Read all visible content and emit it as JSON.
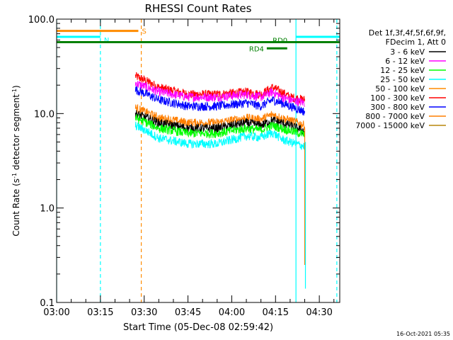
{
  "chart_data": {
    "type": "line",
    "title": "RHESSI Count Rates",
    "xlabel": "Start Time (05-Dec-08 02:59:42)",
    "ylabel_main": "Count Rate (s",
    "ylabel_sup": "-1",
    "ylabel_mid": " detector segment",
    "ylabel_sup2": "-1",
    "ylabel_end": ")",
    "y_scale": "log",
    "ylim": [
      0.1,
      100
    ],
    "xlim": [
      "03:00",
      "04:37"
    ],
    "x_ticks": [
      "03:00",
      "03:15",
      "03:30",
      "03:45",
      "04:00",
      "04:15",
      "04:30"
    ],
    "y_ticks": [
      "0.1",
      "1.0",
      "10.0",
      "100.0"
    ],
    "timestamp": "16-Oct-2021 05:35",
    "legend": {
      "position": "right",
      "header": [
        "Det 1f,3f,4f,5f,6f,9f,",
        "FDecim 1, Att 0"
      ],
      "entries": [
        {
          "label": "3 - 6 keV",
          "color": "#000000"
        },
        {
          "label": "6 - 12 keV",
          "color": "#ff00ff"
        },
        {
          "label": "12 - 25 keV",
          "color": "#00ff00"
        },
        {
          "label": "25 - 50 keV",
          "color": "#00ffff"
        },
        {
          "label": "50 - 100 keV",
          "color": "#ff8c00"
        },
        {
          "label": "100 - 300 keV",
          "color": "#ff0000"
        },
        {
          "label": "300 - 800 keV",
          "color": "#0000ff"
        },
        {
          "label": "800 - 7000 keV",
          "color": "#ff7f00"
        },
        {
          "label": "7000 - 15000 keV",
          "color": "#b8860b"
        }
      ]
    },
    "data_window": {
      "start": "03:27",
      "end": "04:25"
    },
    "series": [
      {
        "name": "100 - 300 keV",
        "color": "#ff0000",
        "x": [
          "03:27",
          "03:35",
          "03:45",
          "03:55",
          "04:05",
          "04:10",
          "04:14",
          "04:17",
          "04:20",
          "04:25"
        ],
        "values": [
          25,
          19,
          16,
          16,
          17,
          16,
          19,
          17,
          15,
          14
        ]
      },
      {
        "name": "6 - 12 keV",
        "color": "#ff00ff",
        "x": [
          "03:27",
          "03:35",
          "03:45",
          "03:55",
          "04:05",
          "04:10",
          "04:14",
          "04:17",
          "04:20",
          "04:25"
        ],
        "values": [
          21,
          17,
          15,
          15,
          16,
          15,
          17,
          15,
          14,
          13
        ]
      },
      {
        "name": "300 - 800 keV",
        "color": "#0000ff",
        "x": [
          "03:27",
          "03:35",
          "03:45",
          "03:55",
          "04:05",
          "04:10",
          "04:14",
          "04:17",
          "04:20",
          "04:25"
        ],
        "values": [
          18,
          14,
          12,
          12,
          13,
          12,
          14,
          13,
          12,
          10.5
        ]
      },
      {
        "name": "800 - 7000 keV",
        "color": "#ff7f00",
        "x": [
          "03:27",
          "03:35",
          "03:45",
          "03:55",
          "04:05",
          "04:10",
          "04:14",
          "04:17",
          "04:20",
          "04:25"
        ],
        "values": [
          11.5,
          9,
          8,
          8,
          9,
          8.7,
          9.8,
          9,
          8.5,
          7.5
        ]
      },
      {
        "name": "3 - 6 keV",
        "color": "#000000",
        "x": [
          "03:27",
          "03:35",
          "03:45",
          "03:55",
          "04:05",
          "04:10",
          "04:14",
          "04:17",
          "04:20",
          "04:25"
        ],
        "values": [
          10,
          8,
          7,
          7,
          8,
          7.5,
          8.5,
          8,
          7.5,
          6.5
        ]
      },
      {
        "name": "12 - 25 keV",
        "color": "#00ff00",
        "x": [
          "03:27",
          "03:35",
          "03:45",
          "03:55",
          "04:05",
          "04:10",
          "04:14",
          "04:17",
          "04:20",
          "04:25"
        ],
        "values": [
          9,
          7,
          6.2,
          6.2,
          7,
          6.7,
          7.5,
          7,
          6.6,
          6
        ]
      },
      {
        "name": "25 - 50 keV",
        "color": "#00ffff",
        "x": [
          "03:27",
          "03:35",
          "03:45",
          "03:55",
          "04:05",
          "04:10",
          "04:14",
          "04:17",
          "04:20",
          "04:25"
        ],
        "values": [
          7.5,
          5.5,
          4.8,
          4.8,
          5.8,
          5.6,
          6.3,
          5.4,
          5,
          4.5
        ]
      }
    ],
    "attenuator_intervals": [
      {
        "label": "S",
        "color": "#ff8c00",
        "start": "03:00",
        "end": "03:28",
        "level": 75
      },
      {
        "label": "N",
        "color": "#00ffff",
        "start": "03:00",
        "end": "03:15",
        "level": 65
      },
      {
        "label": "",
        "color": "#00ffff",
        "start": "04:22",
        "end": "04:37",
        "level": 65
      },
      {
        "label": "RD0",
        "color": "#008000",
        "start": "03:00",
        "end": "04:37",
        "level": 57
      },
      {
        "label": "RD4",
        "color": "#008000",
        "start": "04:12",
        "end": "04:19",
        "level": 49
      }
    ],
    "vertical_markers": [
      {
        "time": "03:00",
        "color": "#00ffff",
        "style": "solid"
      },
      {
        "time": "03:15",
        "color": "#00ffff",
        "style": "dashed"
      },
      {
        "time": "03:29",
        "color": "#ff8c00",
        "style": "dashed"
      },
      {
        "time": "04:22",
        "color": "#00ffff",
        "style": "solid"
      },
      {
        "time": "04:36",
        "color": "#00ffff",
        "style": "dashed"
      }
    ]
  }
}
